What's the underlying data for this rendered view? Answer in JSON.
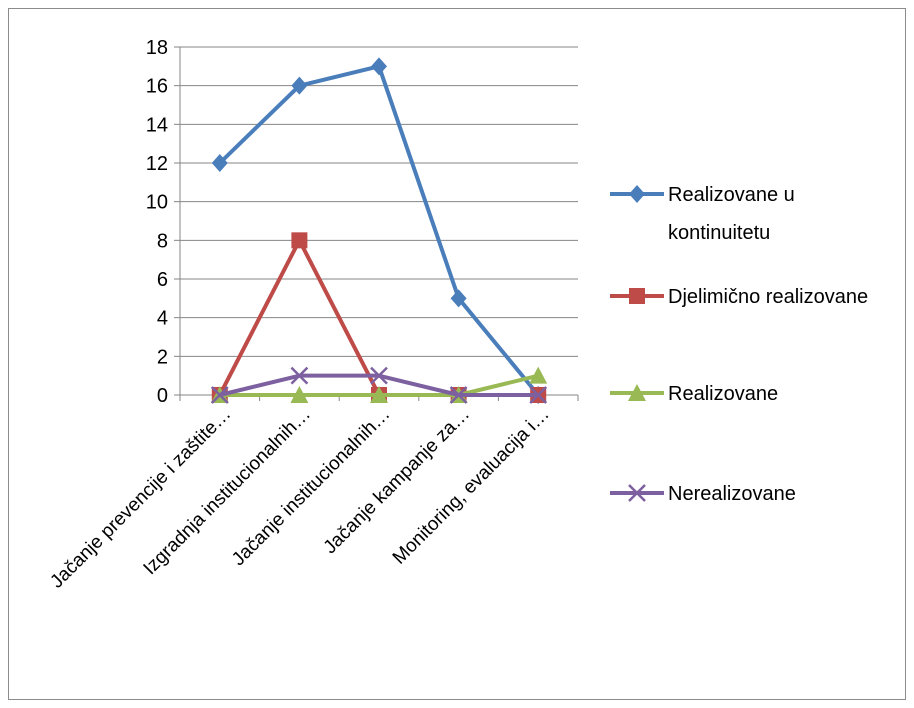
{
  "chart_data": {
    "type": "line",
    "title": "",
    "xlabel": "",
    "ylabel": "",
    "ylim": [
      0,
      18
    ],
    "yticks": [
      0,
      2,
      4,
      6,
      8,
      10,
      12,
      14,
      16,
      18
    ],
    "grid": true,
    "legend_position": "right",
    "categories": [
      "Jačanje prevencije i zaštite…",
      "Izgradnja institucionalnih…",
      "Jačanje institucionalnih…",
      "Jačanje kampanje za…",
      "Monitoring, evaluacija i…"
    ],
    "series": [
      {
        "name": "Realizovane u kontinuitetu",
        "legend_lines": [
          "Realizovane u",
          "kontinuitetu"
        ],
        "values": [
          12,
          16,
          17,
          5,
          0
        ],
        "color": "#4a7ebb",
        "marker": "diamond"
      },
      {
        "name": "Djelimično realizovane",
        "legend_lines": [
          "Djelimično realizovane"
        ],
        "values": [
          0,
          8,
          0,
          0,
          0
        ],
        "color": "#be4b48",
        "marker": "square"
      },
      {
        "name": "Realizovane",
        "legend_lines": [
          "Realizovane"
        ],
        "values": [
          0,
          0,
          0,
          0,
          1
        ],
        "color": "#98b954",
        "marker": "triangle"
      },
      {
        "name": "Nerealizovane",
        "legend_lines": [
          "Nerealizovane"
        ],
        "values": [
          0,
          1,
          1,
          0,
          0
        ],
        "color": "#7d60a0",
        "marker": "x"
      }
    ]
  }
}
